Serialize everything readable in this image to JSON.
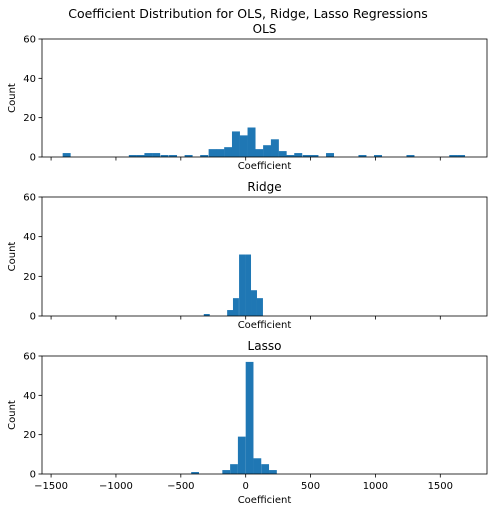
{
  "suptitle": "Coefficient Distribution for OLS, Ridge, Lasso Regressions",
  "colors": {
    "bar": "#1f77b4",
    "axes": "#000000",
    "background": "#ffffff"
  },
  "chart_data": [
    {
      "type": "bar",
      "title": "OLS",
      "xlabel": "Coefficient",
      "ylabel": "Count",
      "xlim": [
        -1570,
        1860
      ],
      "ylim": [
        0,
        60
      ],
      "yticks": [
        0,
        20,
        40,
        60
      ],
      "xticks": [
        -1500,
        -1000,
        -500,
        0,
        500,
        1000,
        1500
      ],
      "show_xtick_labels": false,
      "bin_width": 61.5,
      "bars": [
        {
          "x": -1380,
          "count": 2
        },
        {
          "x": -870,
          "count": 1
        },
        {
          "x": -810,
          "count": 1
        },
        {
          "x": -750,
          "count": 2
        },
        {
          "x": -690,
          "count": 2
        },
        {
          "x": -625,
          "count": 1
        },
        {
          "x": -560,
          "count": 1
        },
        {
          "x": -440,
          "count": 1
        },
        {
          "x": -320,
          "count": 1
        },
        {
          "x": -255,
          "count": 4
        },
        {
          "x": -195,
          "count": 4
        },
        {
          "x": -135,
          "count": 5
        },
        {
          "x": -75,
          "count": 13
        },
        {
          "x": -15,
          "count": 11
        },
        {
          "x": 45,
          "count": 15
        },
        {
          "x": 105,
          "count": 4
        },
        {
          "x": 165,
          "count": 6
        },
        {
          "x": 225,
          "count": 9
        },
        {
          "x": 285,
          "count": 3
        },
        {
          "x": 345,
          "count": 1
        },
        {
          "x": 405,
          "count": 2
        },
        {
          "x": 470,
          "count": 1
        },
        {
          "x": 530,
          "count": 1
        },
        {
          "x": 650,
          "count": 2
        },
        {
          "x": 900,
          "count": 1
        },
        {
          "x": 1020,
          "count": 1
        },
        {
          "x": 1270,
          "count": 1
        },
        {
          "x": 1600,
          "count": 1
        },
        {
          "x": 1660,
          "count": 1
        }
      ]
    },
    {
      "type": "bar",
      "title": "Ridge",
      "xlabel": "Coefficient",
      "ylabel": "Count",
      "xlim": [
        -1570,
        1860
      ],
      "ylim": [
        0,
        60
      ],
      "yticks": [
        0,
        20,
        40,
        60
      ],
      "xticks": [
        -1500,
        -1000,
        -500,
        0,
        500,
        1000,
        1500
      ],
      "show_xtick_labels": false,
      "bin_width": 46,
      "bars": [
        {
          "x": -300,
          "count": 1
        },
        {
          "x": -120,
          "count": 3
        },
        {
          "x": -75,
          "count": 9
        },
        {
          "x": -28,
          "count": 31
        },
        {
          "x": 18,
          "count": 31
        },
        {
          "x": 64,
          "count": 13
        },
        {
          "x": 110,
          "count": 9
        }
      ]
    },
    {
      "type": "bar",
      "title": "Lasso",
      "xlabel": "Coefficient",
      "ylabel": "Count",
      "xlim": [
        -1570,
        1860
      ],
      "ylim": [
        0,
        60
      ],
      "yticks": [
        0,
        20,
        40,
        60
      ],
      "xticks": [
        -1500,
        -1000,
        -500,
        0,
        500,
        1000,
        1500
      ],
      "show_xtick_labels": true,
      "bin_width": 60,
      "bars": [
        {
          "x": -390,
          "count": 1
        },
        {
          "x": -150,
          "count": 2
        },
        {
          "x": -90,
          "count": 5
        },
        {
          "x": -30,
          "count": 19
        },
        {
          "x": 30,
          "count": 57
        },
        {
          "x": 90,
          "count": 8
        },
        {
          "x": 150,
          "count": 5
        },
        {
          "x": 210,
          "count": 2
        }
      ]
    }
  ]
}
